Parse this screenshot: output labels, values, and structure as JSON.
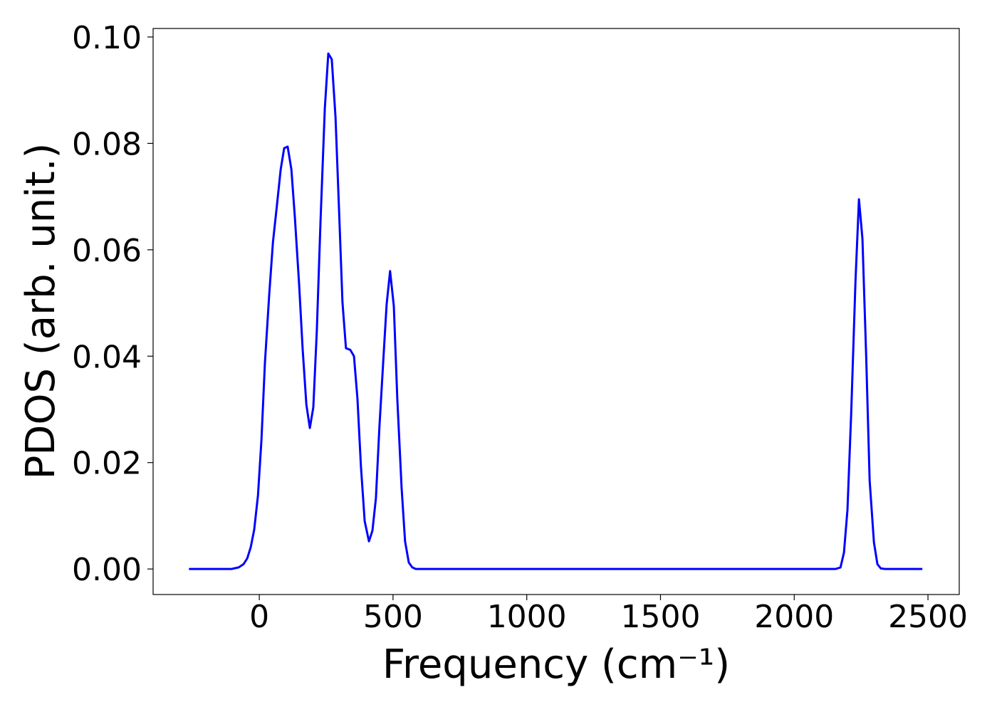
{
  "chart_data": {
    "type": "line",
    "x_label": "Frequency (cm⁻¹)",
    "y_label": "PDOS (arb. unit.)",
    "xlim": [
      -397,
      2617
    ],
    "ylim": [
      -0.0048,
      0.1016
    ],
    "xticks": [
      0,
      500,
      1000,
      1500,
      2000,
      2500
    ],
    "yticks": [
      {
        "value": 0,
        "label": "0.00"
      },
      {
        "value": 0.02,
        "label": "0.02"
      },
      {
        "value": 0.04,
        "label": "0.04"
      },
      {
        "value": 0.06,
        "label": "0.06"
      },
      {
        "value": 0.08,
        "label": "0.08"
      },
      {
        "value": 0.1,
        "label": "0.10"
      }
    ],
    "grid": false,
    "x": [
      -263,
      -104,
      -77,
      -59,
      -45,
      -32,
      -19,
      -5,
      8,
      21,
      37,
      51,
      66,
      80,
      93,
      106,
      120,
      133,
      149,
      162,
      176,
      189,
      202,
      215,
      229,
      245,
      258,
      271,
      285,
      298,
      311,
      324,
      340,
      354,
      367,
      380,
      394,
      410,
      423,
      436,
      449,
      463,
      476,
      489,
      503,
      516,
      532,
      545,
      559,
      572,
      585,
      2154,
      2173,
      2186,
      2199,
      2213,
      2229,
      2242,
      2255,
      2269,
      2282,
      2298,
      2311,
      2324,
      2340,
      2479
    ],
    "series": [
      {
        "color": "#0000ff",
        "values": [
          0,
          0,
          0.0003,
          0.0009,
          0.002,
          0.0041,
          0.0074,
          0.0138,
          0.0242,
          0.0387,
          0.0515,
          0.0614,
          0.0684,
          0.0751,
          0.0791,
          0.0794,
          0.0751,
          0.0661,
          0.0534,
          0.0414,
          0.0309,
          0.0265,
          0.0304,
          0.0447,
          0.0655,
          0.0866,
          0.0969,
          0.0958,
          0.0849,
          0.0677,
          0.0501,
          0.0415,
          0.0412,
          0.04,
          0.032,
          0.0193,
          0.009,
          0.0052,
          0.0072,
          0.0133,
          0.0266,
          0.0387,
          0.0497,
          0.056,
          0.0494,
          0.032,
          0.0153,
          0.0052,
          0.0012,
          0.0003,
          0,
          0,
          0.0003,
          0.0031,
          0.0111,
          0.0293,
          0.0541,
          0.0695,
          0.0621,
          0.04,
          0.0166,
          0.005,
          0.0009,
          0.0001,
          0,
          0
        ]
      }
    ]
  }
}
